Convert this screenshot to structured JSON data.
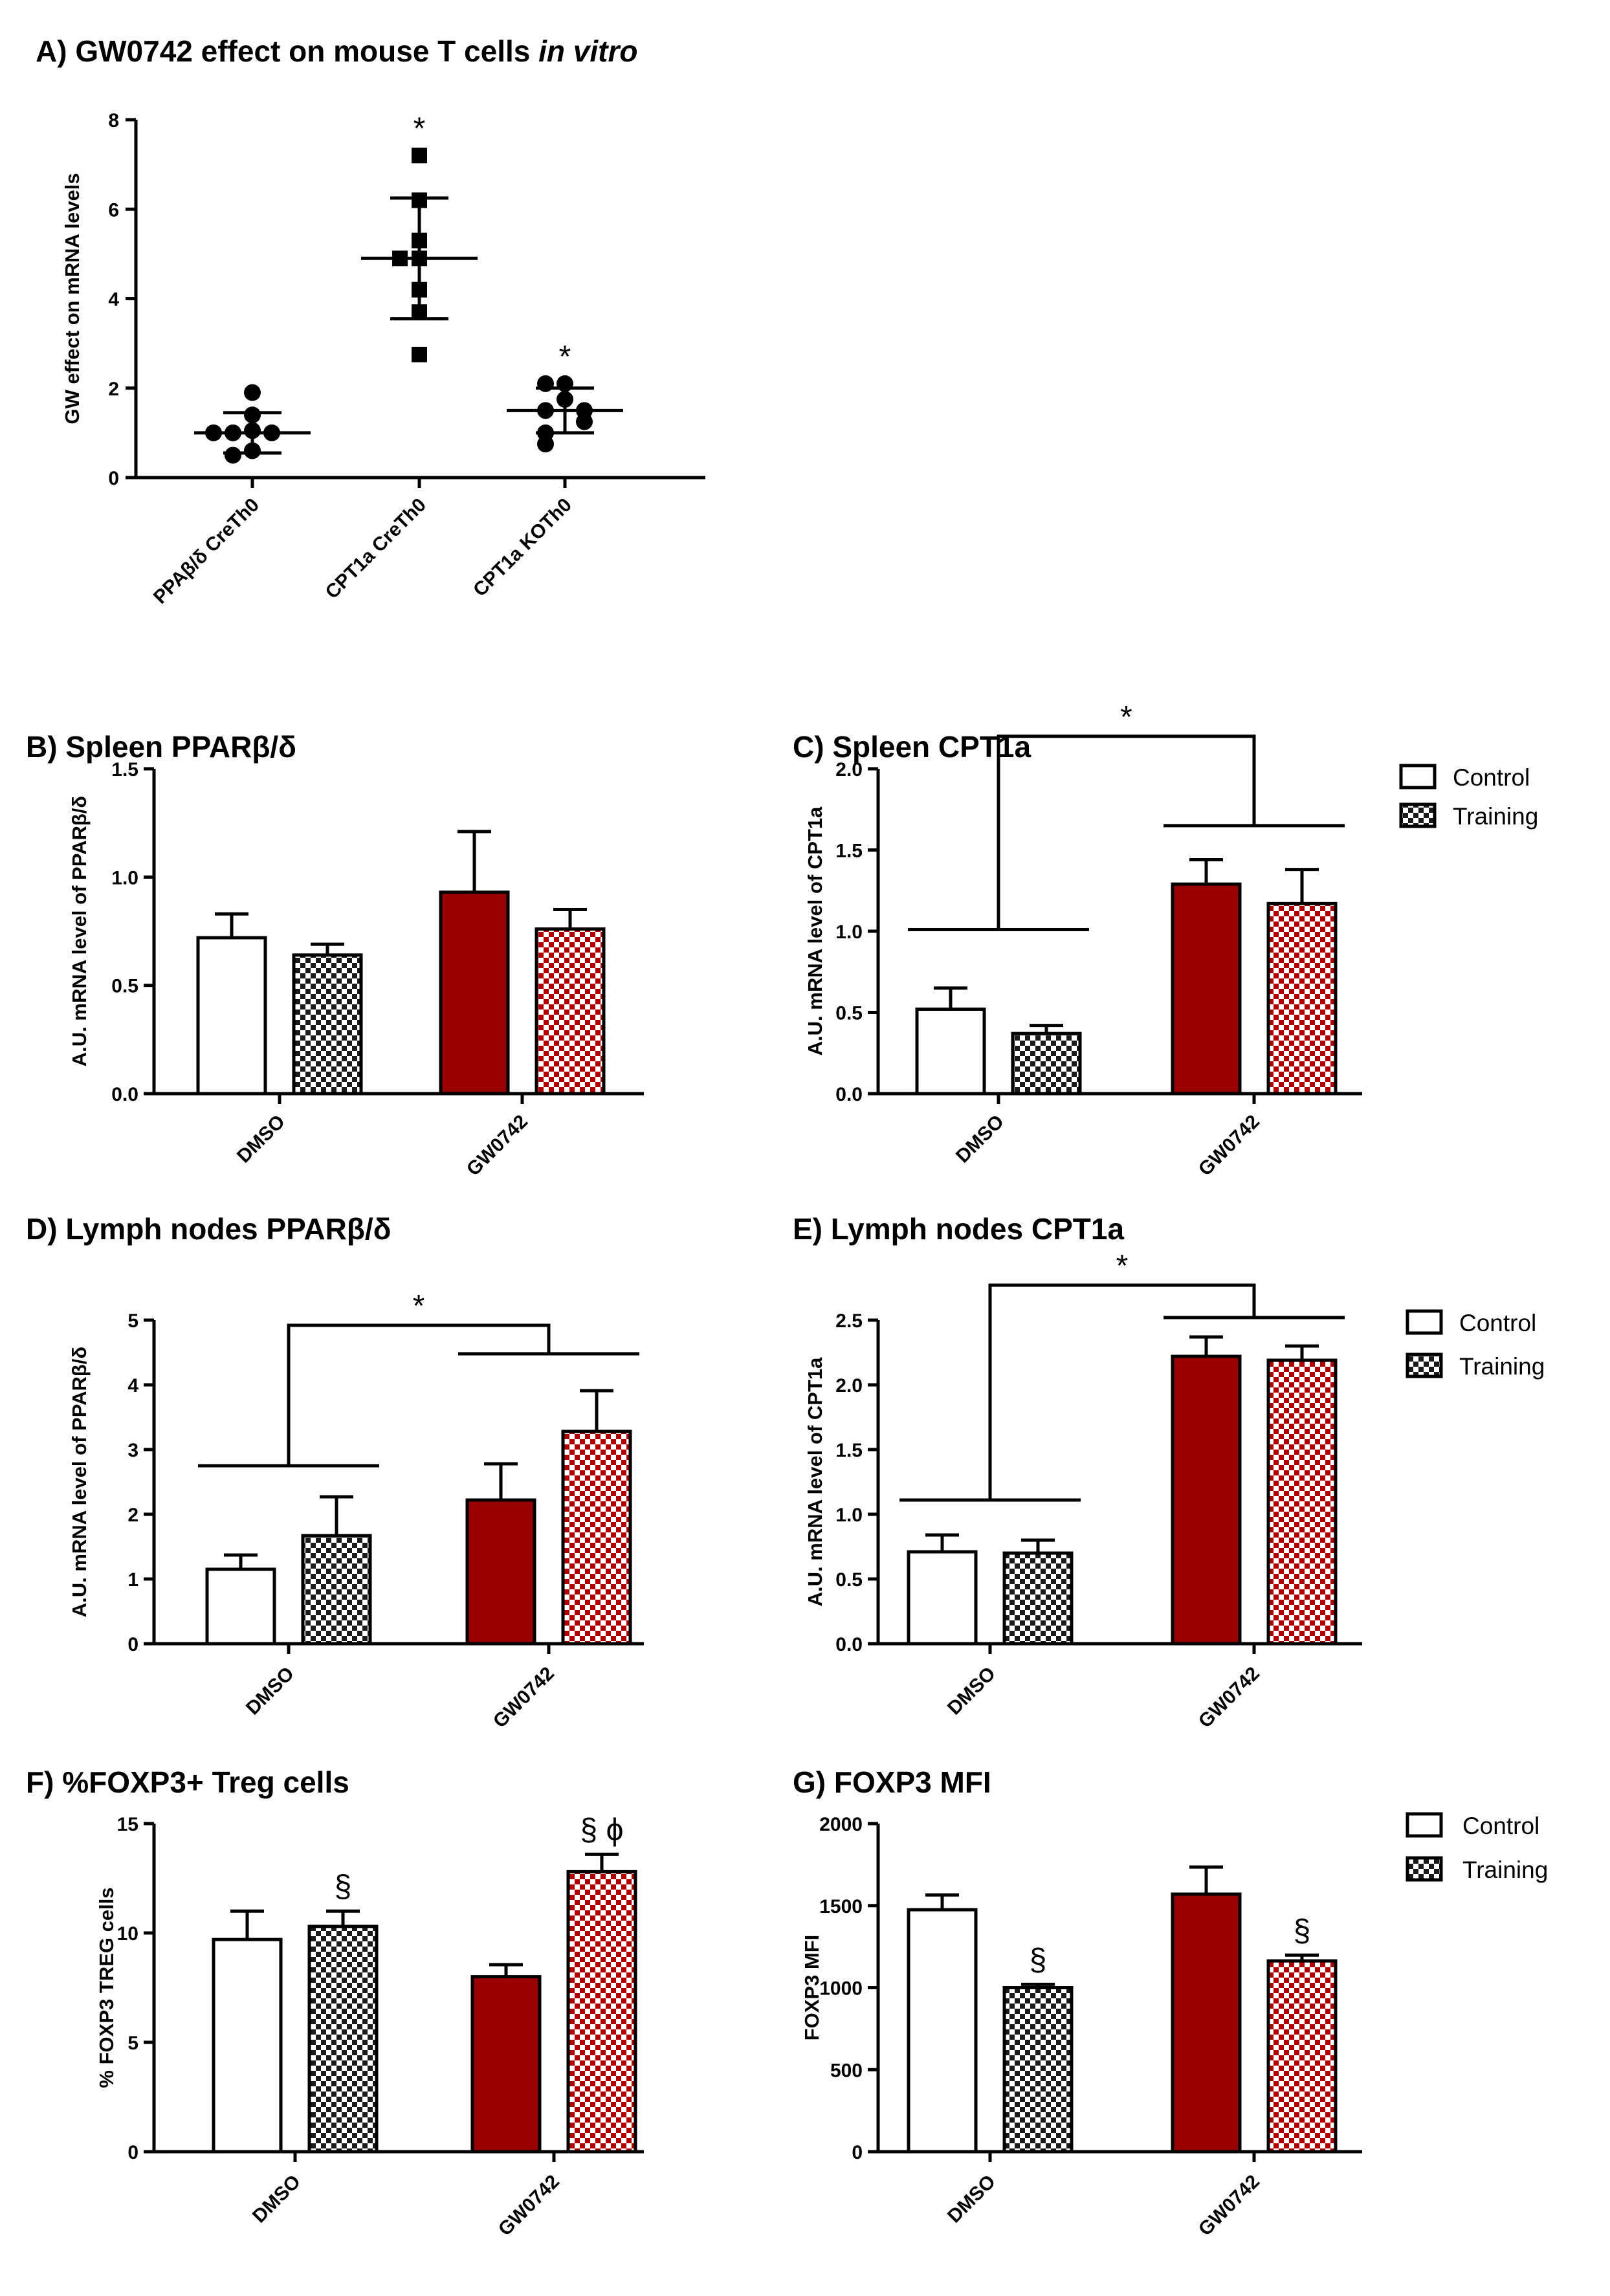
{
  "colors": {
    "control_fill": "#ffffff",
    "gw_fill": "#9b0000",
    "checker_dark": "#1a1a1a",
    "checker_red": "#b30000",
    "axis": "#000000"
  },
  "legends": [
    {
      "entries": [
        {
          "label": "Control",
          "pattern": "solid"
        },
        {
          "label": "Training",
          "pattern": "checker"
        }
      ]
    },
    {
      "entries": [
        {
          "label": "Control",
          "pattern": "solid"
        },
        {
          "label": "Training",
          "pattern": "checker"
        }
      ]
    },
    {
      "entries": [
        {
          "label": "Control",
          "pattern": "solid"
        },
        {
          "label": "Training",
          "pattern": "checker"
        }
      ]
    }
  ],
  "chart_data": [
    {
      "id": "A",
      "type": "scatter",
      "title_prefix": "A)",
      "title": "GW0742 effect on mouse T cells ",
      "title_italic": "in vitro",
      "ylabel": "GW effect on mRNA levels",
      "ylim": [
        0,
        8
      ],
      "yticks": [
        "0",
        "2",
        "4",
        "6",
        "8"
      ],
      "categories": [
        "PPAβ/δ CreTh0",
        "CPT1a CreTh0",
        "CPT1a KOTh0"
      ],
      "groups": [
        {
          "name": "PPAβ/δ CreTh0",
          "marker": "circle",
          "points": [
            1.9,
            1.4,
            1.05,
            1.0,
            1.0,
            1.0,
            0.6,
            0.5
          ],
          "mean": 1.0,
          "sd": 0.45,
          "annotation": ""
        },
        {
          "name": "CPT1a CreTh0",
          "marker": "square",
          "points": [
            7.2,
            6.2,
            5.3,
            4.9,
            4.9,
            4.2,
            3.7,
            2.75
          ],
          "mean": 4.9,
          "sd": 1.35,
          "annotation": "*"
        },
        {
          "name": "CPT1a KOTh0",
          "marker": "circle",
          "points": [
            2.1,
            2.1,
            1.75,
            1.5,
            1.5,
            1.25,
            1.0,
            0.75
          ],
          "mean": 1.5,
          "sd": 0.5,
          "annotation": "*"
        }
      ]
    },
    {
      "id": "B",
      "type": "bar",
      "title_prefix": "B)",
      "title": "Spleen PPARβ/δ",
      "ylabel": "A.U. mRNA level of PPARβ/δ",
      "ylim": [
        0,
        1.5
      ],
      "yticks": [
        "0.0",
        "0.5",
        "1.0",
        "1.5"
      ],
      "categories": [
        "DMSO",
        "GW0742"
      ],
      "series": [
        {
          "name": "Control",
          "values": [
            0.72,
            0.93
          ],
          "errors": [
            0.11,
            0.28
          ]
        },
        {
          "name": "Training",
          "values": [
            0.64,
            0.76
          ],
          "errors": [
            0.05,
            0.09
          ]
        }
      ],
      "bar_annotations": [
        "",
        "",
        "",
        ""
      ],
      "bracket": null
    },
    {
      "id": "C",
      "type": "bar",
      "title_prefix": "C)",
      "title": "Spleen CPT1a",
      "ylabel": "A.U. mRNA level of CPT1a",
      "ylim": [
        0,
        2.0
      ],
      "yticks": [
        "0.0",
        "0.5",
        "1.0",
        "1.5",
        "2.0"
      ],
      "categories": [
        "DMSO",
        "GW0742"
      ],
      "series": [
        {
          "name": "Control",
          "values": [
            0.52,
            1.29
          ],
          "errors": [
            0.13,
            0.15
          ]
        },
        {
          "name": "Training",
          "values": [
            0.37,
            1.17
          ],
          "errors": [
            0.05,
            0.21
          ]
        }
      ],
      "bar_annotations": [
        "",
        "",
        "",
        ""
      ],
      "bracket": {
        "label": "*",
        "left_level": 1.01,
        "right_level": 1.65,
        "top_level": 2.2
      }
    },
    {
      "id": "D",
      "type": "bar",
      "title_prefix": "D)",
      "title": "Lymph nodes PPARβ/δ",
      "ylabel": "A.U. mRNA level of PPARβ/δ",
      "ylim": [
        0,
        5
      ],
      "yticks": [
        "0",
        "1",
        "2",
        "3",
        "4",
        "5"
      ],
      "categories": [
        "DMSO",
        "GW0742"
      ],
      "series": [
        {
          "name": "Control",
          "values": [
            1.15,
            2.22
          ],
          "errors": [
            0.22,
            0.56
          ]
        },
        {
          "name": "Training",
          "values": [
            1.67,
            3.28
          ],
          "errors": [
            0.6,
            0.63
          ]
        }
      ],
      "bar_annotations": [
        "",
        "",
        "",
        ""
      ],
      "bracket": {
        "label": "*",
        "left_level": 2.75,
        "right_level": 4.48,
        "top_level": 4.92
      }
    },
    {
      "id": "E",
      "type": "bar",
      "title_prefix": "E)",
      "title": "Lymph nodes CPT1a",
      "ylabel": "A.U. mRNA level of CPT1a",
      "ylim": [
        0,
        2.5
      ],
      "yticks": [
        "0.0",
        "0.5",
        "1.0",
        "1.5",
        "2.0",
        "2.5"
      ],
      "categories": [
        "DMSO",
        "GW0742"
      ],
      "series": [
        {
          "name": "Control",
          "values": [
            0.71,
            2.22
          ],
          "errors": [
            0.13,
            0.15
          ]
        },
        {
          "name": "Training",
          "values": [
            0.7,
            2.19
          ],
          "errors": [
            0.1,
            0.11
          ]
        }
      ],
      "bar_annotations": [
        "",
        "",
        "",
        ""
      ],
      "bracket": {
        "label": "*",
        "left_level": 1.11,
        "right_level": 2.52,
        "top_level": 2.77
      }
    },
    {
      "id": "F",
      "type": "bar",
      "title_prefix": "F)",
      "title": "%FOXP3+ Treg cells",
      "ylabel": "% FOXP3 TREG cells",
      "ylim": [
        0,
        15
      ],
      "yticks": [
        "0",
        "5",
        "10",
        "15"
      ],
      "categories": [
        "DMSO",
        "GW0742"
      ],
      "series": [
        {
          "name": "Control",
          "values": [
            9.7,
            8.0
          ],
          "errors": [
            1.3,
            0.55
          ]
        },
        {
          "name": "Training",
          "values": [
            10.3,
            12.8
          ],
          "errors": [
            0.7,
            0.8
          ]
        }
      ],
      "bar_annotations": [
        "",
        "§",
        "",
        "§ ϕ"
      ],
      "bracket": null
    },
    {
      "id": "G",
      "type": "bar",
      "title_prefix": "G)",
      "title": "FOXP3 MFI",
      "ylabel": "FOXP3 MFI",
      "ylim": [
        0,
        2000
      ],
      "yticks": [
        "0",
        "500",
        "1000",
        "1500",
        "2000"
      ],
      "categories": [
        "DMSO",
        "GW0742"
      ],
      "series": [
        {
          "name": "Control",
          "values": [
            1475,
            1570
          ],
          "errors": [
            90,
            165
          ]
        },
        {
          "name": "Training",
          "values": [
            1000,
            1163
          ],
          "errors": [
            20,
            35
          ]
        }
      ],
      "bar_annotations": [
        "",
        "§",
        "",
        "§"
      ],
      "bracket": null
    }
  ]
}
